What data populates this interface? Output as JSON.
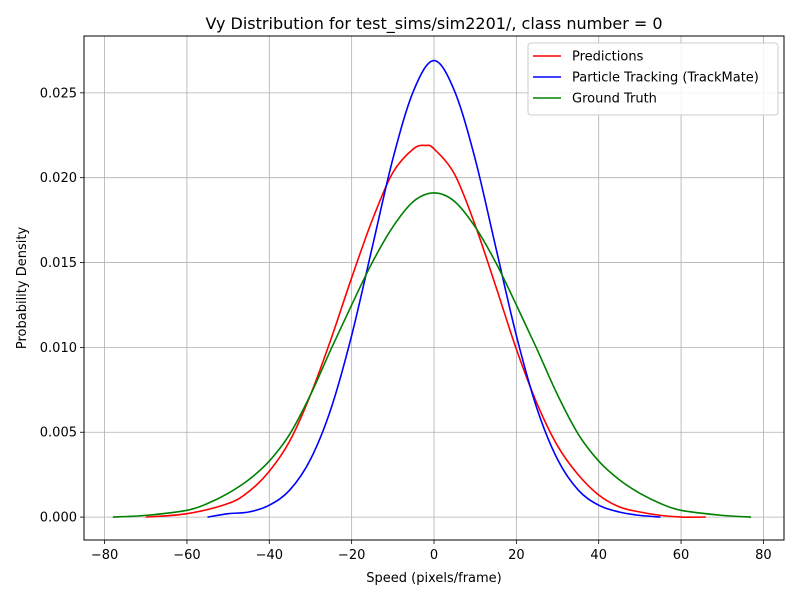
{
  "chart_data": {
    "type": "line",
    "title": "Vy Distribution for test_sims/sim2201/, class number = 0",
    "xlabel": "Speed (pixels/frame)",
    "ylabel": "Probability Density",
    "xlim": [
      -85,
      85
    ],
    "ylim": [
      -0.00135,
      0.02835
    ],
    "xticks": [
      -80,
      -60,
      -40,
      -20,
      0,
      20,
      40,
      60,
      80
    ],
    "xtick_labels": [
      "−80",
      "−60",
      "−40",
      "−20",
      "0",
      "20",
      "40",
      "60",
      "80"
    ],
    "yticks": [
      0.0,
      0.005,
      0.01,
      0.015,
      0.02,
      0.025
    ],
    "ytick_labels": [
      "0.000",
      "0.005",
      "0.010",
      "0.015",
      "0.020",
      "0.025"
    ],
    "grid": true,
    "legend_position": "upper-right",
    "series": [
      {
        "name": "Predictions",
        "color": "#ff0000",
        "x": [
          -70,
          -60,
          -50,
          -45,
          -40,
          -35,
          -30,
          -25,
          -20,
          -15,
          -10,
          -5,
          -2,
          0,
          5,
          10,
          15,
          20,
          25,
          30,
          35,
          40,
          45,
          50,
          55,
          60,
          66
        ],
        "y": [
          0.0,
          0.0002,
          0.0008,
          0.0015,
          0.0027,
          0.0045,
          0.0072,
          0.0105,
          0.0141,
          0.0175,
          0.0203,
          0.0217,
          0.0219,
          0.0217,
          0.0202,
          0.0172,
          0.0136,
          0.0099,
          0.0067,
          0.0042,
          0.0025,
          0.0013,
          0.0006,
          0.0003,
          0.0001,
          0.0,
          0.0
        ]
      },
      {
        "name": "Particle Tracking (TrackMate)",
        "color": "#0000ff",
        "x": [
          -55,
          -50,
          -45,
          -40,
          -35,
          -30,
          -25,
          -20,
          -15,
          -10,
          -5,
          0,
          5,
          10,
          15,
          20,
          25,
          30,
          35,
          40,
          45,
          50,
          55
        ],
        "y": [
          0.0,
          0.0002,
          0.0003,
          0.0007,
          0.0016,
          0.0034,
          0.0064,
          0.0107,
          0.0159,
          0.0211,
          0.0251,
          0.0269,
          0.0251,
          0.0211,
          0.0159,
          0.0107,
          0.0064,
          0.0034,
          0.0016,
          0.0007,
          0.0003,
          0.0001,
          0.0
        ]
      },
      {
        "name": "Ground Truth",
        "color": "#008000",
        "x": [
          -78,
          -70,
          -60,
          -55,
          -50,
          -45,
          -40,
          -35,
          -30,
          -25,
          -20,
          -15,
          -10,
          -5,
          0,
          5,
          10,
          15,
          20,
          25,
          30,
          35,
          40,
          45,
          50,
          55,
          60,
          70,
          77
        ],
        "y": [
          0.0,
          0.0001,
          0.0004,
          0.0008,
          0.0014,
          0.0022,
          0.0033,
          0.0049,
          0.0072,
          0.0099,
          0.0125,
          0.015,
          0.0171,
          0.0186,
          0.0191,
          0.0186,
          0.0171,
          0.015,
          0.0125,
          0.0099,
          0.0072,
          0.0049,
          0.0033,
          0.0022,
          0.0014,
          0.0008,
          0.0004,
          0.0001,
          0.0
        ]
      }
    ]
  }
}
